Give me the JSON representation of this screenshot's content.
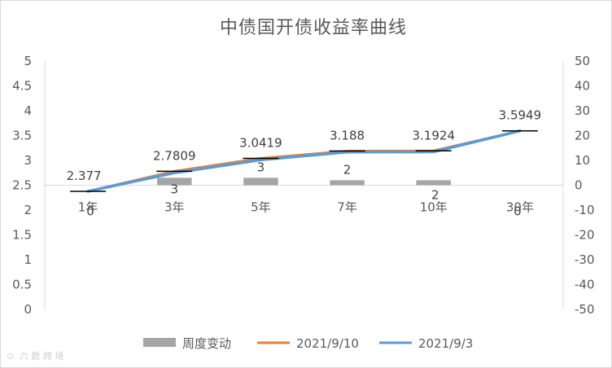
{
  "chart_data": {
    "type": "line",
    "title": "中债国开债收益率曲线",
    "categories": [
      "1年",
      "3年",
      "5年",
      "7年",
      "10年",
      "30年"
    ],
    "series": [
      {
        "name": "周度变动",
        "type": "bar",
        "axis": "right",
        "values": [
          0,
          3,
          3,
          2,
          2,
          0
        ],
        "labels": [
          "0",
          "3",
          "3",
          "2",
          "2",
          "0"
        ],
        "color": "#a5a5a5"
      },
      {
        "name": "2021/9/10",
        "type": "line",
        "axis": "left",
        "values": [
          2.377,
          2.7809,
          3.0419,
          3.188,
          3.1924,
          3.5949
        ],
        "labels": [
          "2.377",
          "2.7809",
          "3.0419",
          "3.188",
          "3.1924",
          "3.5949"
        ],
        "color": "#ed7d31"
      },
      {
        "name": "2021/9/3",
        "type": "line",
        "axis": "left",
        "values": [
          2.377,
          2.75,
          3.01,
          3.168,
          3.172,
          3.5949
        ],
        "color": "#5b9bd5"
      }
    ],
    "y_left": {
      "min": 0,
      "max": 5,
      "step": 0.5,
      "ticks": [
        "0",
        "0.5",
        "1",
        "1.5",
        "2",
        "2.5",
        "3",
        "3.5",
        "4",
        "4.5",
        "5"
      ]
    },
    "y_right": {
      "min": -50,
      "max": 50,
      "step": 10,
      "ticks": [
        "-50",
        "-40",
        "-30",
        "-20",
        "-10",
        "0",
        "10",
        "20",
        "30",
        "40",
        "50"
      ]
    },
    "grid": false,
    "legend_position": "bottom",
    "watermark": "六 数 跨 境"
  }
}
